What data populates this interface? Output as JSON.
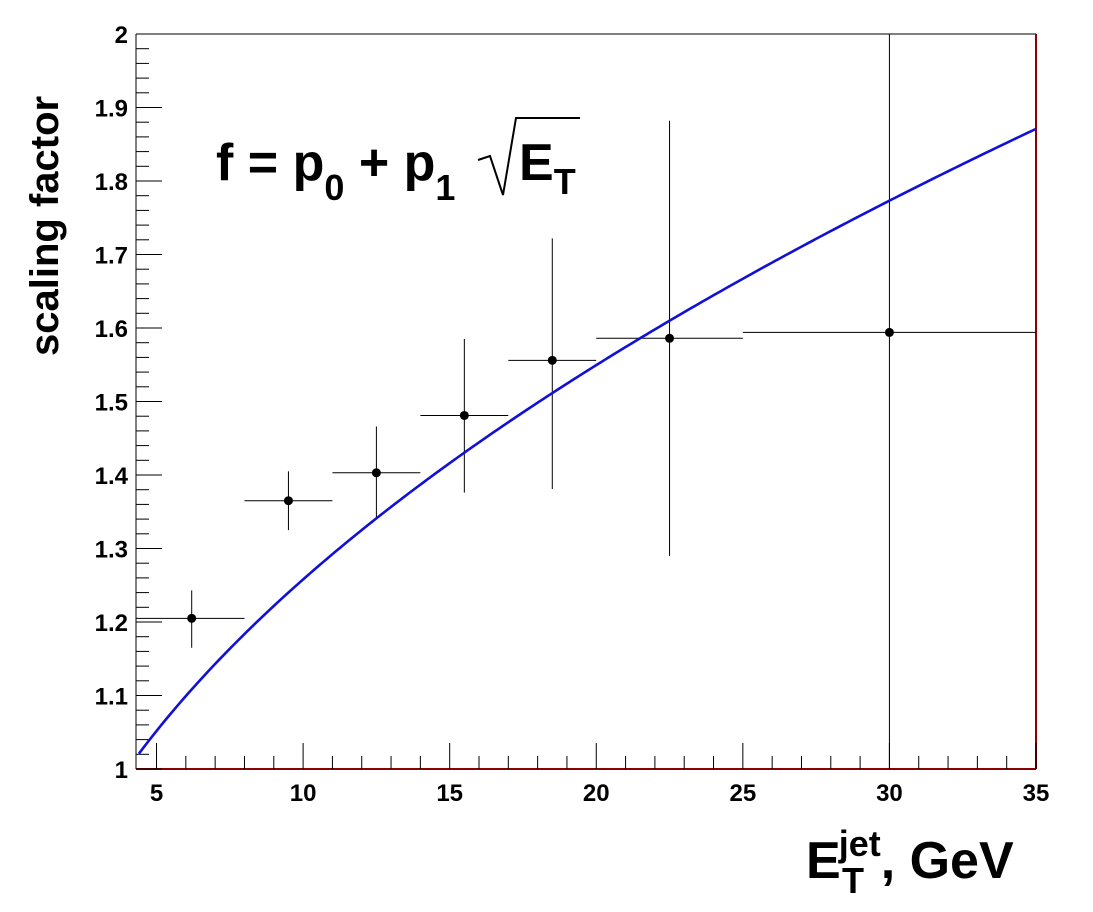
{
  "chart_data": {
    "type": "scatter",
    "xlabel_main": "E",
    "xlabel_sup": "jet",
    "xlabel_sub": "T",
    "xlabel_unit": ", GeV",
    "ylabel": "scaling factor",
    "xlim": [
      4.3,
      35
    ],
    "ylim": [
      1,
      2
    ],
    "xticks": [
      5,
      10,
      15,
      20,
      25,
      30,
      35
    ],
    "yticks": [
      1,
      1.1,
      1.2,
      1.3,
      1.4,
      1.5,
      1.6,
      1.7,
      1.8,
      1.9,
      2
    ],
    "grid": false,
    "points": [
      {
        "x": 6.2,
        "y": 1.205,
        "xerr_low": 4.3,
        "xerr_high": 8.0,
        "yerr_low": 1.165,
        "yerr_high": 1.243
      },
      {
        "x": 9.5,
        "y": 1.365,
        "xerr_low": 8.0,
        "xerr_high": 11.0,
        "yerr_low": 1.325,
        "yerr_high": 1.405
      },
      {
        "x": 12.5,
        "y": 1.403,
        "xerr_low": 11.0,
        "xerr_high": 14.0,
        "yerr_low": 1.34,
        "yerr_high": 1.466
      },
      {
        "x": 15.5,
        "y": 1.481,
        "xerr_low": 14.0,
        "xerr_high": 17.0,
        "yerr_low": 1.376,
        "yerr_high": 1.585
      },
      {
        "x": 18.5,
        "y": 1.556,
        "xerr_low": 17.0,
        "xerr_high": 20.0,
        "yerr_low": 1.381,
        "yerr_high": 1.722
      },
      {
        "x": 22.5,
        "y": 1.586,
        "xerr_low": 20.0,
        "xerr_high": 25.0,
        "yerr_low": 1.29,
        "yerr_high": 1.882
      },
      {
        "x": 30.0,
        "y": 1.594,
        "xerr_low": 25.0,
        "xerr_high": 35.0,
        "yerr_low": 1.0,
        "yerr_high": 2.0
      }
    ],
    "fit": {
      "p0": 0.554,
      "p1": 0.2226,
      "x_start": 4.4,
      "x_end": 35,
      "color": "#1010d8"
    },
    "formula": {
      "lhs": "f = p",
      "sub0": "0",
      "plus": " + p",
      "sub1": "1",
      "radicand": "E",
      "radicand_sub": "T"
    },
    "colors": {
      "frame": "#000000",
      "right_bottom_edge": "#8b0000",
      "marker": "#000000"
    }
  }
}
